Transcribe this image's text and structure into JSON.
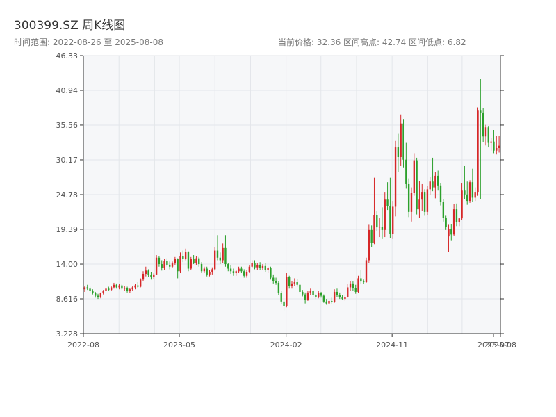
{
  "chart_data": {
    "type": "candlestick",
    "title": "300399.SZ 周K线图",
    "subtitle_left": "时间范围: 2022-08-26 至 2025-08-08",
    "subtitle_right": "当前价格: 32.36   区间高点: 42.74   区间低点: 6.82",
    "y_ticks": [
      "3.228",
      "8.616",
      "14.00",
      "19.39",
      "24.78",
      "30.17",
      "35.56",
      "40.94",
      "46.33"
    ],
    "ylim": [
      3.228,
      46.33
    ],
    "x_ticks": [
      "2022-08",
      "2023-05",
      "2024-02",
      "2024-11",
      "2025-07",
      "2025-08"
    ],
    "x_tick_dates": [
      "2022-08-26",
      "2023-05-01",
      "2024-02-01",
      "2024-11-01",
      "2025-07-21",
      "2025-08-08"
    ],
    "xlim": [
      "2022-08-26",
      "2025-08-08"
    ],
    "grid": true,
    "up_color": "#d62728",
    "down_color": "#2ca02c",
    "series": [
      {
        "values": [
          [
            10.1,
            10.6,
            9.7,
            10.4
          ],
          [
            10.4,
            10.8,
            10.0,
            10.2
          ],
          [
            10.2,
            10.5,
            9.6,
            9.8
          ],
          [
            9.8,
            10.1,
            9.3,
            9.5
          ],
          [
            9.5,
            9.7,
            8.8,
            9.1
          ],
          [
            9.1,
            9.4,
            8.6,
            8.9
          ],
          [
            8.9,
            9.6,
            8.7,
            9.5
          ],
          [
            9.5,
            10.0,
            9.3,
            9.9
          ],
          [
            9.9,
            10.4,
            9.6,
            10.2
          ],
          [
            10.2,
            10.5,
            9.8,
            10.0
          ],
          [
            10.0,
            10.6,
            9.9,
            10.4
          ],
          [
            10.4,
            11.1,
            10.2,
            10.8
          ],
          [
            10.8,
            11.0,
            10.2,
            10.4
          ],
          [
            10.4,
            10.9,
            10.1,
            10.7
          ],
          [
            10.7,
            10.9,
            10.0,
            10.2
          ],
          [
            10.2,
            10.6,
            9.8,
            10.3
          ],
          [
            10.3,
            10.5,
            9.6,
            9.8
          ],
          [
            9.8,
            10.3,
            9.5,
            10.1
          ],
          [
            10.1,
            10.6,
            9.9,
            10.4
          ],
          [
            10.4,
            10.9,
            10.1,
            10.7
          ],
          [
            10.7,
            11.2,
            10.3,
            10.5
          ],
          [
            10.5,
            11.8,
            10.4,
            11.6
          ],
          [
            11.6,
            12.9,
            11.4,
            12.5
          ],
          [
            12.5,
            13.6,
            12.1,
            13.0
          ],
          [
            13.0,
            13.2,
            12.0,
            12.3
          ],
          [
            12.3,
            12.8,
            11.6,
            12.0
          ],
          [
            12.0,
            12.6,
            11.7,
            12.4
          ],
          [
            12.4,
            15.4,
            12.3,
            15.0
          ],
          [
            15.0,
            15.2,
            13.6,
            14.0
          ],
          [
            14.0,
            14.6,
            13.0,
            13.4
          ],
          [
            13.4,
            14.8,
            13.1,
            14.5
          ],
          [
            14.5,
            14.9,
            13.6,
            13.9
          ],
          [
            13.9,
            14.4,
            13.2,
            13.6
          ],
          [
            13.6,
            14.4,
            13.4,
            14.1
          ],
          [
            14.1,
            15.1,
            13.9,
            14.8
          ],
          [
            14.8,
            14.9,
            11.8,
            12.9
          ],
          [
            12.9,
            15.8,
            12.6,
            15.2
          ],
          [
            15.2,
            16.1,
            14.3,
            14.8
          ],
          [
            14.8,
            16.4,
            14.6,
            15.9
          ],
          [
            15.9,
            16.0,
            12.9,
            13.3
          ],
          [
            13.3,
            15.1,
            13.1,
            14.8
          ],
          [
            14.8,
            15.4,
            14.0,
            14.2
          ],
          [
            14.2,
            15.2,
            13.9,
            14.9
          ],
          [
            14.9,
            15.1,
            13.6,
            14.0
          ],
          [
            14.0,
            14.3,
            12.6,
            12.9
          ],
          [
            12.9,
            13.6,
            12.6,
            13.3
          ],
          [
            13.3,
            13.6,
            12.1,
            12.4
          ],
          [
            12.4,
            13.1,
            12.1,
            12.8
          ],
          [
            12.8,
            13.5,
            12.4,
            13.2
          ],
          [
            13.2,
            16.6,
            13.0,
            16.1
          ],
          [
            16.1,
            18.5,
            14.6,
            15.0
          ],
          [
            15.0,
            15.8,
            14.0,
            14.6
          ],
          [
            14.6,
            17.2,
            14.2,
            16.5
          ],
          [
            16.5,
            18.5,
            13.6,
            14.0
          ],
          [
            14.0,
            14.2,
            12.9,
            13.3
          ],
          [
            13.3,
            13.8,
            12.5,
            12.9
          ],
          [
            12.9,
            13.3,
            12.2,
            12.6
          ],
          [
            12.6,
            13.1,
            12.2,
            12.9
          ],
          [
            12.9,
            13.6,
            12.6,
            13.3
          ],
          [
            13.3,
            13.6,
            12.6,
            12.9
          ],
          [
            12.9,
            13.2,
            11.9,
            12.2
          ],
          [
            12.2,
            13.1,
            11.9,
            12.8
          ],
          [
            12.8,
            13.9,
            12.6,
            13.6
          ],
          [
            13.6,
            14.6,
            13.4,
            14.2
          ],
          [
            14.2,
            14.6,
            13.2,
            13.5
          ],
          [
            13.5,
            14.2,
            13.1,
            13.9
          ],
          [
            13.9,
            14.3,
            13.1,
            13.4
          ],
          [
            13.4,
            14.0,
            13.1,
            13.7
          ],
          [
            13.7,
            14.2,
            12.8,
            13.1
          ],
          [
            13.1,
            13.6,
            12.6,
            13.4
          ],
          [
            13.4,
            13.6,
            11.6,
            11.9
          ],
          [
            11.9,
            12.4,
            11.0,
            11.4
          ],
          [
            11.4,
            11.9,
            10.8,
            11.1
          ],
          [
            11.1,
            11.4,
            9.2,
            9.5
          ],
          [
            9.5,
            9.8,
            7.8,
            8.2
          ],
          [
            8.2,
            8.4,
            6.82,
            7.5
          ],
          [
            7.5,
            12.6,
            7.3,
            12.0
          ],
          [
            12.0,
            12.2,
            10.2,
            10.6
          ],
          [
            10.6,
            11.4,
            10.2,
            11.0
          ],
          [
            11.0,
            11.8,
            10.6,
            11.2
          ],
          [
            11.2,
            11.7,
            10.5,
            10.8
          ],
          [
            10.8,
            11.0,
            9.4,
            9.7
          ],
          [
            9.7,
            10.0,
            9.0,
            9.3
          ],
          [
            9.3,
            9.6,
            7.9,
            8.5
          ],
          [
            8.5,
            9.9,
            8.3,
            9.6
          ],
          [
            9.6,
            10.2,
            9.2,
            9.9
          ],
          [
            9.9,
            10.0,
            8.9,
            9.2
          ],
          [
            9.2,
            9.4,
            8.6,
            8.9
          ],
          [
            8.9,
            9.8,
            8.7,
            9.5
          ],
          [
            9.5,
            9.7,
            8.8,
            9.1
          ],
          [
            9.1,
            9.3,
            8.0,
            8.2
          ],
          [
            8.2,
            8.6,
            7.7,
            7.9
          ],
          [
            7.9,
            8.6,
            7.7,
            8.3
          ],
          [
            8.3,
            8.8,
            7.9,
            8.1
          ],
          [
            8.1,
            10.1,
            8.0,
            9.7
          ],
          [
            9.7,
            10.2,
            8.9,
            9.2
          ],
          [
            9.2,
            9.6,
            8.6,
            8.9
          ],
          [
            8.9,
            9.2,
            8.4,
            8.6
          ],
          [
            8.6,
            9.2,
            8.3,
            8.9
          ],
          [
            8.9,
            10.9,
            8.8,
            10.4
          ],
          [
            10.4,
            11.4,
            9.9,
            11.0
          ],
          [
            11.0,
            11.3,
            9.9,
            10.3
          ],
          [
            10.3,
            10.8,
            9.4,
            9.7
          ],
          [
            9.7,
            12.2,
            9.5,
            11.8
          ],
          [
            11.8,
            13.1,
            10.9,
            11.3
          ],
          [
            11.3,
            11.6,
            10.9,
            11.2
          ],
          [
            11.2,
            15.0,
            11.1,
            14.6
          ],
          [
            14.6,
            20.1,
            14.2,
            19.3
          ],
          [
            19.3,
            20.0,
            16.6,
            17.3
          ],
          [
            17.3,
            27.4,
            17.1,
            21.6
          ],
          [
            21.6,
            22.3,
            19.1,
            19.7
          ],
          [
            19.7,
            21.2,
            18.2,
            19.8
          ],
          [
            19.8,
            22.8,
            17.9,
            19.3
          ],
          [
            19.3,
            25.2,
            18.2,
            24.0
          ],
          [
            24.0,
            26.7,
            22.4,
            23.0
          ],
          [
            23.0,
            27.4,
            18.0,
            18.7
          ],
          [
            18.7,
            23.8,
            17.9,
            22.9
          ],
          [
            22.9,
            33.1,
            21.4,
            32.1
          ],
          [
            32.1,
            34.2,
            28.3,
            30.6
          ],
          [
            30.6,
            37.2,
            29.2,
            35.8
          ],
          [
            35.8,
            36.5,
            28.9,
            30.2
          ],
          [
            30.2,
            32.8,
            25.7,
            26.4
          ],
          [
            26.4,
            27.3,
            21.3,
            22.1
          ],
          [
            22.1,
            25.9,
            20.6,
            25.1
          ],
          [
            25.1,
            31.2,
            24.6,
            30.1
          ],
          [
            30.1,
            30.5,
            21.7,
            22.5
          ],
          [
            22.5,
            26.9,
            21.2,
            24.0
          ],
          [
            24.0,
            26.4,
            22.3,
            25.2
          ],
          [
            25.2,
            25.6,
            21.5,
            22.1
          ],
          [
            22.1,
            26.1,
            21.6,
            25.6
          ],
          [
            25.6,
            27.5,
            24.7,
            26.8
          ],
          [
            26.8,
            30.5,
            25.3,
            25.9
          ],
          [
            25.9,
            28.3,
            24.2,
            27.7
          ],
          [
            27.7,
            28.5,
            25.4,
            26.2
          ],
          [
            26.2,
            26.6,
            23.1,
            23.6
          ],
          [
            23.6,
            24.1,
            20.6,
            21.2
          ],
          [
            21.2,
            21.5,
            19.3,
            19.8
          ],
          [
            18.3,
            20.1,
            15.9,
            19.4
          ],
          [
            19.4,
            20.2,
            17.6,
            18.6
          ],
          [
            18.6,
            23.3,
            18.4,
            22.5
          ],
          [
            22.5,
            23.4,
            19.9,
            20.5
          ],
          [
            20.5,
            21.2,
            19.9,
            21.1
          ],
          [
            21.1,
            26.5,
            20.8,
            25.4
          ],
          [
            25.4,
            29.2,
            24.1,
            24.8
          ],
          [
            24.8,
            26.8,
            23.2,
            23.8
          ],
          [
            23.8,
            27.0,
            23.5,
            26.7
          ],
          [
            26.7,
            28.8,
            23.7,
            24.3
          ],
          [
            24.3,
            25.9,
            23.8,
            25.2
          ],
          [
            25.2,
            38.3,
            24.6,
            37.9
          ],
          [
            37.9,
            42.74,
            24.1,
            37.5
          ],
          [
            37.5,
            38.2,
            32.9,
            33.8
          ],
          [
            33.8,
            35.6,
            32.4,
            35.2
          ],
          [
            35.2,
            35.4,
            32.1,
            32.8
          ],
          [
            32.8,
            33.6,
            31.6,
            33.0
          ],
          [
            33.0,
            34.8,
            31.2,
            31.6
          ],
          [
            31.6,
            33.9,
            31.0,
            32.0
          ],
          [
            32.0,
            33.9,
            31.3,
            32.36
          ]
        ]
      }
    ]
  }
}
